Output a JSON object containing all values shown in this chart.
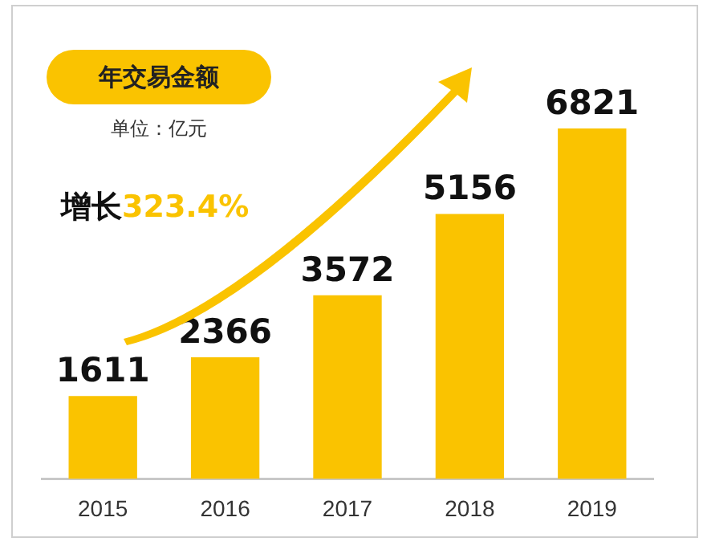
{
  "chart_data": {
    "type": "bar",
    "title": "年交易金额",
    "subtitle": "单位：亿元",
    "categories": [
      "2015",
      "2016",
      "2017",
      "2018",
      "2019"
    ],
    "values": [
      1611,
      2366,
      3572,
      5156,
      6821
    ],
    "color": "#fac300",
    "data_labels": true,
    "annotations": [
      "增长323.4%"
    ]
  }
}
